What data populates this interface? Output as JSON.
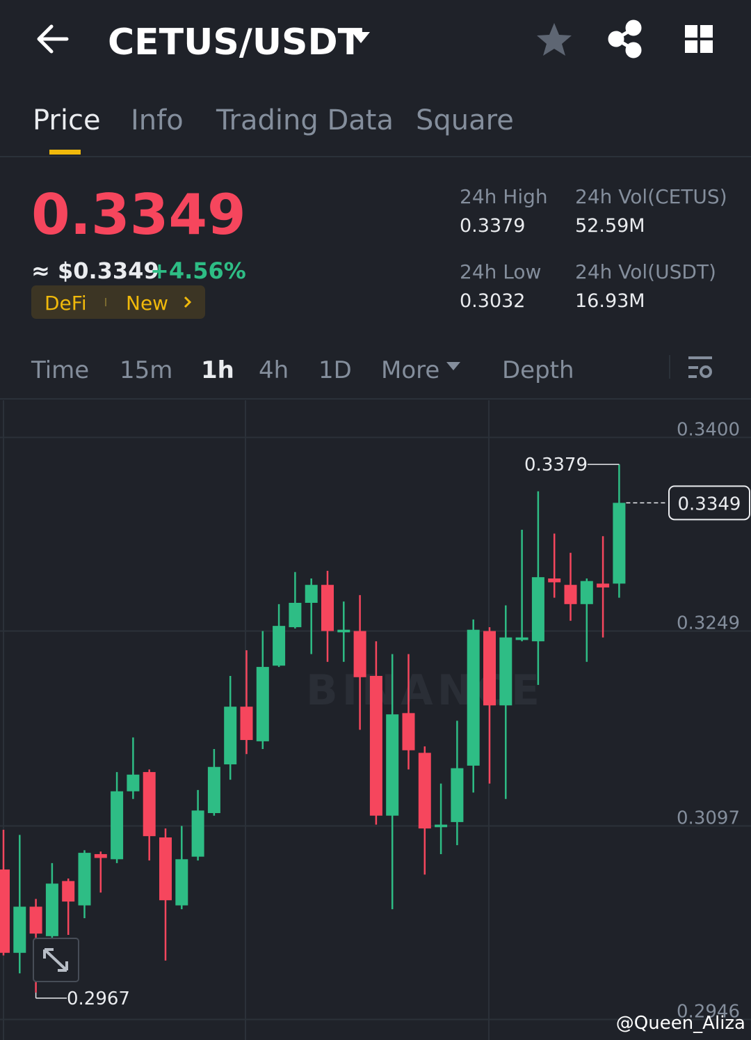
{
  "header": {
    "pair": "CETUS/USDT"
  },
  "tabs": [
    "Price",
    "Info",
    "Trading Data",
    "Square"
  ],
  "ticker": {
    "price": "0.3349",
    "approx": "≈ $0.3349",
    "change": "+4.56%",
    "tags": [
      "DeFi",
      "New"
    ]
  },
  "stats": [
    {
      "label": "24h High",
      "value": "0.3379"
    },
    {
      "label": "24h Vol(CETUS)",
      "value": "52.59M"
    },
    {
      "label": "24h Low",
      "value": "0.3032"
    },
    {
      "label": "24h Vol(USDT)",
      "value": "16.93M"
    }
  ],
  "intervals": [
    "Time",
    "15m",
    "1h",
    "4h",
    "1D",
    "More",
    "Depth"
  ],
  "chart_data": {
    "type": "candlestick",
    "up_color": "#2ebd85",
    "down_color": "#f6465d",
    "ylim": [
      0.293,
      0.3429
    ],
    "yticks": [
      {
        "value": 0.34,
        "label": "0.3400"
      },
      0.3249,
      0.3097,
      0.2946
    ],
    "grid": true,
    "open": [
      0.3063,
      0.2998,
      0.3034,
      0.3011,
      0.3054,
      0.3035,
      0.3075,
      0.3071,
      0.3124,
      0.3139,
      0.3088,
      0.3035,
      0.3073,
      0.3107,
      0.3145,
      0.319,
      0.3163,
      0.3222,
      0.3252,
      0.3271,
      0.3285,
      0.3248,
      0.3249,
      0.3214,
      0.3105,
      0.3185,
      0.3154,
      0.3096,
      0.31,
      0.3144,
      0.3249,
      0.3191,
      0.3242,
      0.3241,
      0.329,
      0.3285,
      0.327,
      0.3286,
      0.3286
    ],
    "high": [
      0.3094,
      0.309,
      0.304,
      0.3068,
      0.3056,
      0.3078,
      0.3077,
      0.3139,
      0.3166,
      0.3141,
      0.3095,
      0.3097,
      0.3125,
      0.3157,
      0.3214,
      0.3234,
      0.3249,
      0.327,
      0.3295,
      0.329,
      0.3296,
      0.3272,
      0.3277,
      0.3241,
      0.3231,
      0.3231,
      0.3159,
      0.313,
      0.3179,
      0.3258,
      0.3252,
      0.3269,
      0.3328,
      0.3358,
      0.3325,
      0.331,
      0.329,
      0.3323,
      0.3379
    ],
    "low": [
      0.2996,
      0.2982,
      0.2967,
      0.3008,
      0.3012,
      0.3025,
      0.3045,
      0.3068,
      0.3118,
      0.307,
      0.2992,
      0.3032,
      0.307,
      0.3105,
      0.3133,
      0.3153,
      0.3157,
      0.3221,
      0.3251,
      0.3231,
      0.3225,
      0.3225,
      0.3172,
      0.3098,
      0.3032,
      0.3141,
      0.3059,
      0.3075,
      0.3082,
      0.3123,
      0.313,
      0.3118,
      0.3241,
      0.3207,
      0.3275,
      0.3257,
      0.3225,
      0.3244,
      0.3275
    ],
    "close": [
      0.2998,
      0.3034,
      0.3013,
      0.3052,
      0.3038,
      0.3076,
      0.3072,
      0.3124,
      0.3137,
      0.3089,
      0.3039,
      0.3071,
      0.3109,
      0.3143,
      0.319,
      0.3164,
      0.3221,
      0.3253,
      0.3271,
      0.3285,
      0.3249,
      0.325,
      0.3213,
      0.3105,
      0.3184,
      0.3156,
      0.3095,
      0.3098,
      0.3142,
      0.325,
      0.3191,
      0.3244,
      0.3244,
      0.3291,
      0.3287,
      0.327,
      0.3288,
      0.3283,
      0.3349
    ],
    "high_label": 0.3379,
    "low_label": 0.2967,
    "last_price": 0.3349,
    "watermark": "BINANCE"
  },
  "watermark": "@Queen_Aliza"
}
